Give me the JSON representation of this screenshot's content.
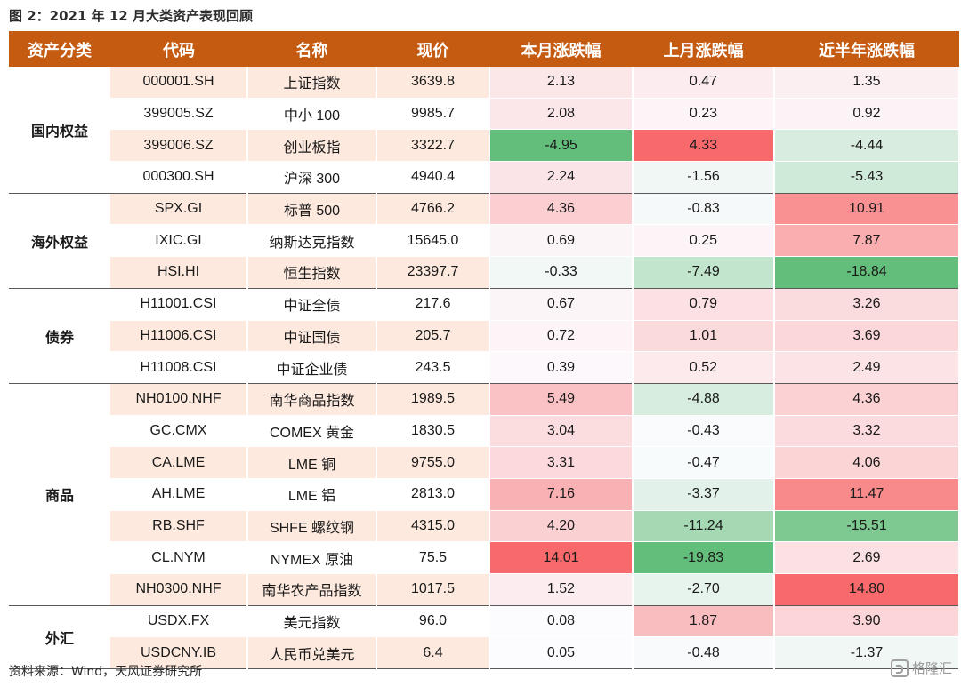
{
  "figure": {
    "title": "图 2：2021 年 12 月大类资产表现回顾",
    "source": "资料来源：Wind，天风证券研究所",
    "watermark": "格隆汇"
  },
  "colors": {
    "header_bg": "#c55a11",
    "header_text": "#ffffff",
    "info_odd_bg": "#fde9de",
    "positive_max": "#f8696b",
    "negative_max": "#63be7b",
    "neutral": "#fcfcff"
  },
  "table": {
    "headers": [
      "资产分类",
      "代码",
      "名称",
      "现价",
      "本月涨跌幅",
      "上月涨跌幅",
      "近半年涨跌幅"
    ],
    "groups": [
      {
        "category": "国内权益",
        "rows": [
          {
            "code": "000001.SH",
            "name": "上证指数",
            "price": "3639.8",
            "m": "2.13",
            "pm": "0.47",
            "h": "1.35"
          },
          {
            "code": "399005.SZ",
            "name": "中小 100",
            "price": "9985.7",
            "m": "2.08",
            "pm": "0.23",
            "h": "0.92"
          },
          {
            "code": "399006.SZ",
            "name": "创业板指",
            "price": "3322.7",
            "m": "-4.95",
            "pm": "4.33",
            "h": "-4.44"
          },
          {
            "code": "000300.SH",
            "name": "沪深 300",
            "price": "4940.4",
            "m": "2.24",
            "pm": "-1.56",
            "h": "-5.43"
          }
        ]
      },
      {
        "category": "海外权益",
        "rows": [
          {
            "code": "SPX.GI",
            "name": "标普 500",
            "price": "4766.2",
            "m": "4.36",
            "pm": "-0.83",
            "h": "10.91"
          },
          {
            "code": "IXIC.GI",
            "name": "纳斯达克指数",
            "price": "15645.0",
            "m": "0.69",
            "pm": "0.25",
            "h": "7.87"
          },
          {
            "code": "HSI.HI",
            "name": "恒生指数",
            "price": "23397.7",
            "m": "-0.33",
            "pm": "-7.49",
            "h": "-18.84"
          }
        ]
      },
      {
        "category": "债券",
        "rows": [
          {
            "code": "H11001.CSI",
            "name": "中证全债",
            "price": "217.6",
            "m": "0.67",
            "pm": "0.79",
            "h": "3.26"
          },
          {
            "code": "H11006.CSI",
            "name": "中证国债",
            "price": "205.7",
            "m": "0.72",
            "pm": "1.01",
            "h": "3.69"
          },
          {
            "code": "H11008.CSI",
            "name": "中证企业债",
            "price": "243.5",
            "m": "0.39",
            "pm": "0.52",
            "h": "2.49"
          }
        ]
      },
      {
        "category": "商品",
        "rows": [
          {
            "code": "NH0100.NHF",
            "name": "南华商品指数",
            "price": "1989.5",
            "m": "5.49",
            "pm": "-4.88",
            "h": "4.36"
          },
          {
            "code": "GC.CMX",
            "name": "COMEX 黄金",
            "price": "1830.5",
            "m": "3.04",
            "pm": "-0.43",
            "h": "3.32"
          },
          {
            "code": "CA.LME",
            "name": "LME 铜",
            "price": "9755.0",
            "m": "3.31",
            "pm": "-0.47",
            "h": "4.06"
          },
          {
            "code": "AH.LME",
            "name": "LME 铝",
            "price": "2813.0",
            "m": "7.16",
            "pm": "-3.37",
            "h": "11.47"
          },
          {
            "code": "RB.SHF",
            "name": "SHFE 螺纹钢",
            "price": "4315.0",
            "m": "4.20",
            "pm": "-11.24",
            "h": "-15.51"
          },
          {
            "code": "CL.NYM",
            "name": "NYMEX 原油",
            "price": "75.5",
            "m": "14.01",
            "pm": "-19.83",
            "h": "2.69"
          },
          {
            "code": "NH0300.NHF",
            "name": "南华农产品指数",
            "price": "1017.5",
            "m": "1.52",
            "pm": "-2.70",
            "h": "14.80"
          }
        ]
      },
      {
        "category": "外汇",
        "rows": [
          {
            "code": "USDX.FX",
            "name": "美元指数",
            "price": "96.0",
            "m": "0.08",
            "pm": "1.87",
            "h": "3.90"
          },
          {
            "code": "USDCNY.IB",
            "name": "人民币兑美元",
            "price": "6.4",
            "m": "0.05",
            "pm": "-0.48",
            "h": "-1.37"
          }
        ]
      }
    ]
  }
}
